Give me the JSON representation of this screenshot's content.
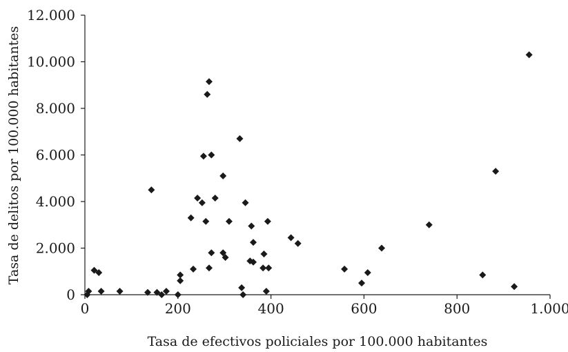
{
  "chart_data": {
    "type": "scatter",
    "title": "",
    "xlabel": "Tasa de efectivos policiales por 100.000 habitantes",
    "ylabel": "Tasa de delitos por 100.000 habitantes",
    "xlim": [
      0,
      1000
    ],
    "ylim": [
      0,
      12000
    ],
    "x_ticks": [
      0,
      200,
      400,
      600,
      800,
      1000
    ],
    "x_tick_labels": [
      "0",
      "200",
      "400",
      "600",
      "800",
      "1.000"
    ],
    "y_ticks": [
      0,
      2000,
      4000,
      6000,
      8000,
      10000,
      12000
    ],
    "y_tick_labels": [
      "0",
      "2.000",
      "4.000",
      "6.000",
      "8.000",
      "10.000",
      "12.000"
    ],
    "grid": false,
    "marker": "diamond",
    "marker_color": "#1a1a1a",
    "points": [
      {
        "x": 5,
        "y": 0
      },
      {
        "x": 8,
        "y": 150
      },
      {
        "x": 20,
        "y": 1050
      },
      {
        "x": 30,
        "y": 950
      },
      {
        "x": 35,
        "y": 150
      },
      {
        "x": 75,
        "y": 150
      },
      {
        "x": 135,
        "y": 100
      },
      {
        "x": 143,
        "y": 4500
      },
      {
        "x": 155,
        "y": 100
      },
      {
        "x": 165,
        "y": 0
      },
      {
        "x": 175,
        "y": 150
      },
      {
        "x": 200,
        "y": 0
      },
      {
        "x": 205,
        "y": 600
      },
      {
        "x": 205,
        "y": 850
      },
      {
        "x": 228,
        "y": 3300
      },
      {
        "x": 233,
        "y": 1100
      },
      {
        "x": 242,
        "y": 4150
      },
      {
        "x": 252,
        "y": 3950
      },
      {
        "x": 255,
        "y": 5950
      },
      {
        "x": 260,
        "y": 3150
      },
      {
        "x": 263,
        "y": 8600
      },
      {
        "x": 267,
        "y": 9150
      },
      {
        "x": 267,
        "y": 1150
      },
      {
        "x": 272,
        "y": 1800
      },
      {
        "x": 272,
        "y": 6000
      },
      {
        "x": 280,
        "y": 4150
      },
      {
        "x": 297,
        "y": 5100
      },
      {
        "x": 297,
        "y": 1800
      },
      {
        "x": 302,
        "y": 1600
      },
      {
        "x": 310,
        "y": 3150
      },
      {
        "x": 333,
        "y": 6700
      },
      {
        "x": 337,
        "y": 300
      },
      {
        "x": 340,
        "y": 0
      },
      {
        "x": 345,
        "y": 3950
      },
      {
        "x": 355,
        "y": 1450
      },
      {
        "x": 358,
        "y": 2950
      },
      {
        "x": 362,
        "y": 2250
      },
      {
        "x": 362,
        "y": 1400
      },
      {
        "x": 383,
        "y": 1150
      },
      {
        "x": 385,
        "y": 1750
      },
      {
        "x": 390,
        "y": 150
      },
      {
        "x": 393,
        "y": 3150
      },
      {
        "x": 395,
        "y": 1150
      },
      {
        "x": 443,
        "y": 2450
      },
      {
        "x": 458,
        "y": 2200
      },
      {
        "x": 558,
        "y": 1100
      },
      {
        "x": 595,
        "y": 500
      },
      {
        "x": 608,
        "y": 950
      },
      {
        "x": 638,
        "y": 2000
      },
      {
        "x": 740,
        "y": 3000
      },
      {
        "x": 855,
        "y": 850
      },
      {
        "x": 883,
        "y": 5300
      },
      {
        "x": 923,
        "y": 350
      },
      {
        "x": 955,
        "y": 10300
      }
    ]
  }
}
